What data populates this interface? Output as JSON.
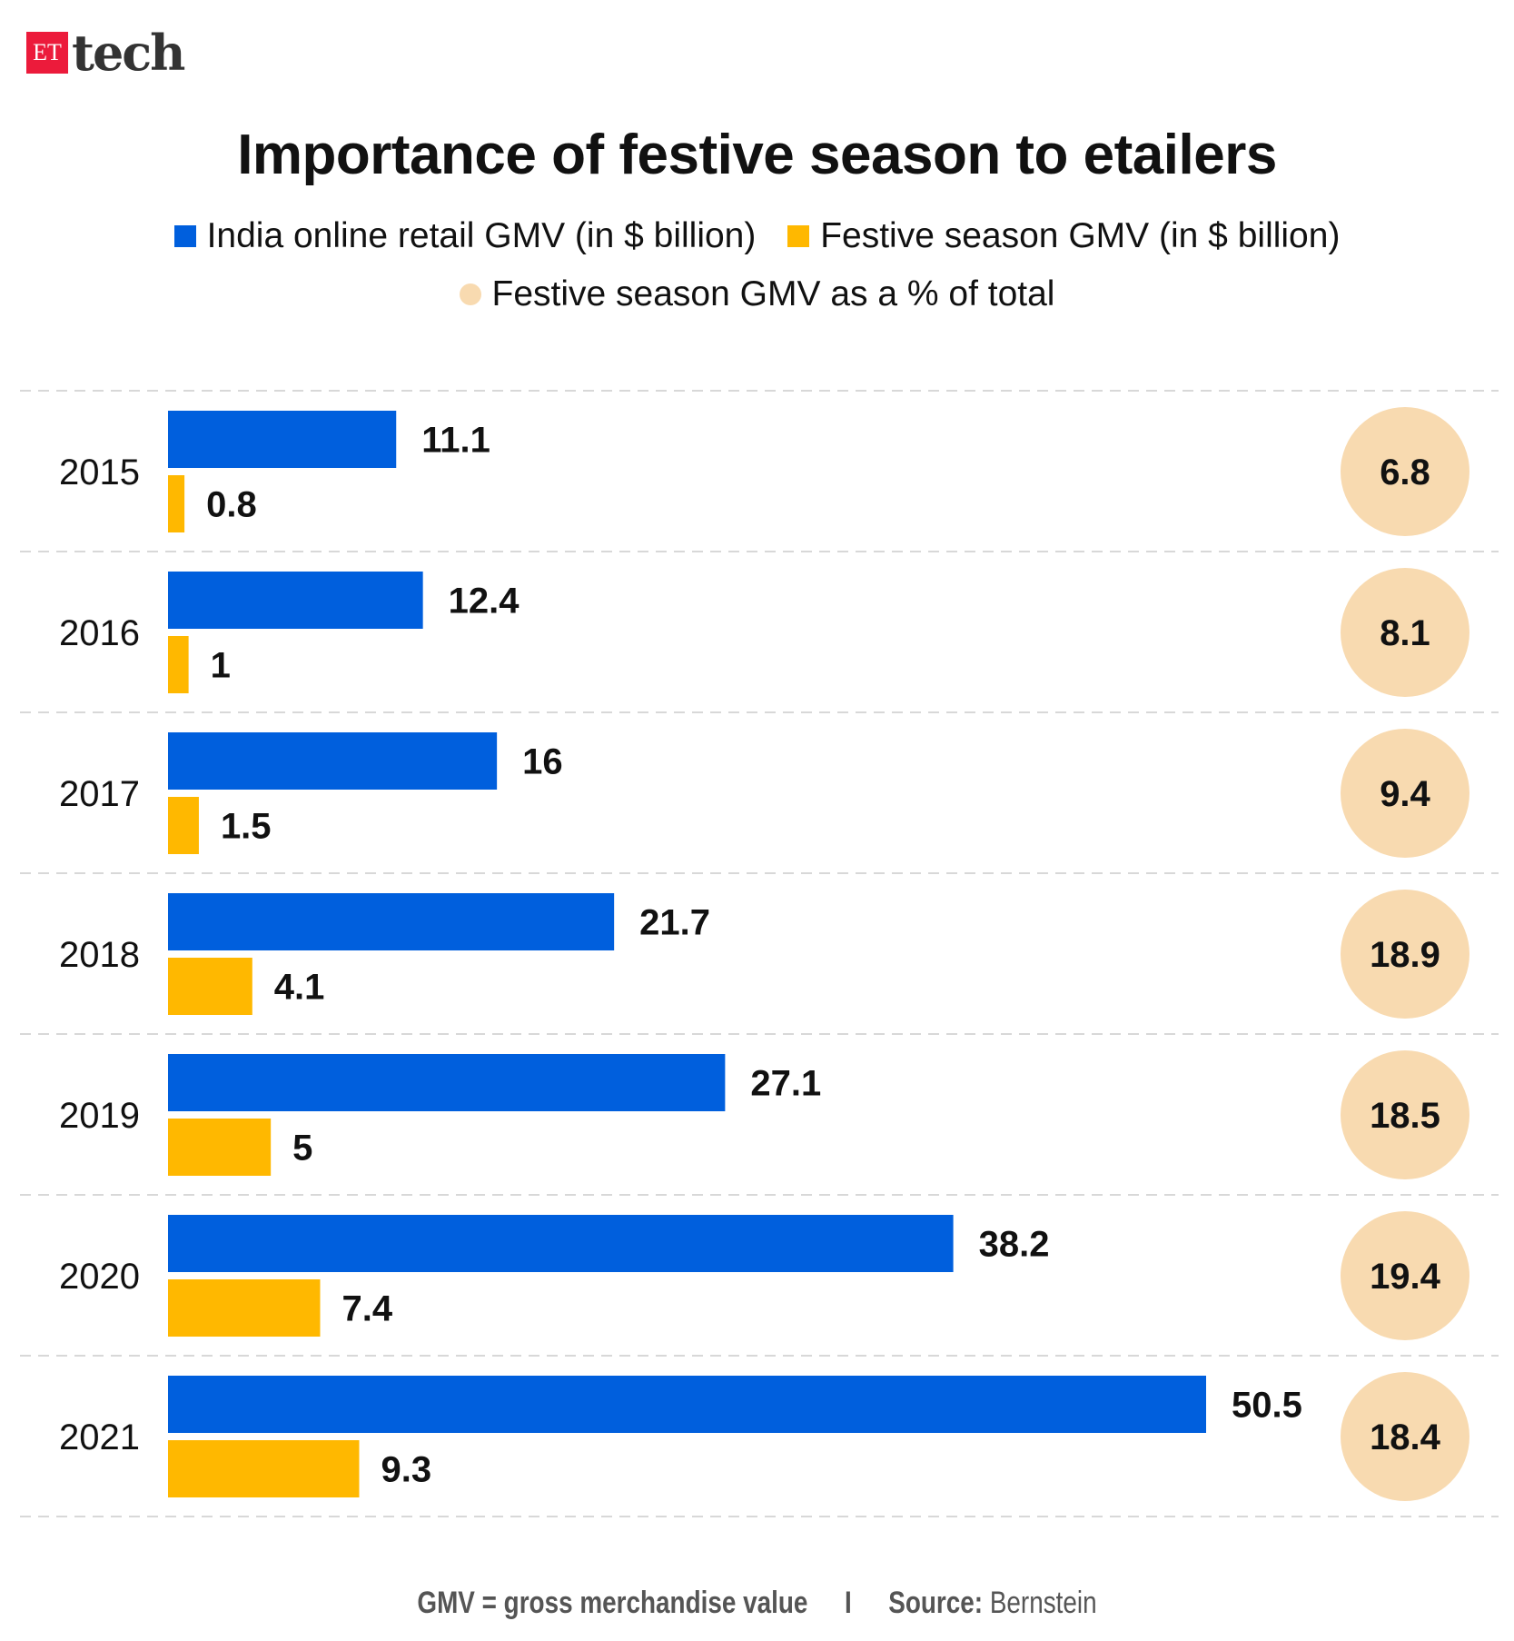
{
  "brand": {
    "logo_mark": "ET",
    "logo_text": "tech"
  },
  "chart_data": {
    "type": "bar",
    "orientation": "horizontal",
    "title": "Importance of festive season to etailers",
    "categories": [
      "2015",
      "2016",
      "2017",
      "2018",
      "2019",
      "2020",
      "2021"
    ],
    "series": [
      {
        "name": "India online retail GMV (in $ billion)",
        "color": "#005fdd",
        "values": [
          11.1,
          12.4,
          16,
          21.7,
          27.1,
          38.2,
          50.5
        ],
        "labels": [
          "11.1",
          "12.4",
          "16",
          "21.7",
          "27.1",
          "38.2",
          "50.5"
        ]
      },
      {
        "name": "Festive season GMV (in $ billion)",
        "color": "#ffb800",
        "values": [
          0.8,
          1,
          1.5,
          4.1,
          5,
          7.4,
          9.3
        ],
        "labels": [
          "0.8",
          "1",
          "1.5",
          "4.1",
          "5",
          "7.4",
          "9.3"
        ]
      },
      {
        "name": "Festive season GMV as a % of total",
        "color": "#f8dab0",
        "marker": "circle",
        "values": [
          6.8,
          8.1,
          9.4,
          18.9,
          18.5,
          19.4,
          18.4
        ],
        "labels": [
          "6.8",
          "8.1",
          "9.4",
          "18.9",
          "18.5",
          "19.4",
          "18.4"
        ]
      }
    ],
    "xlim": [
      0,
      50.5
    ],
    "grid": "dashed horizontal separators",
    "legend": "top"
  },
  "footer": {
    "note": "GMV = gross merchandise value",
    "separator": "I",
    "source_label": "Source:",
    "source": "Bernstein"
  }
}
